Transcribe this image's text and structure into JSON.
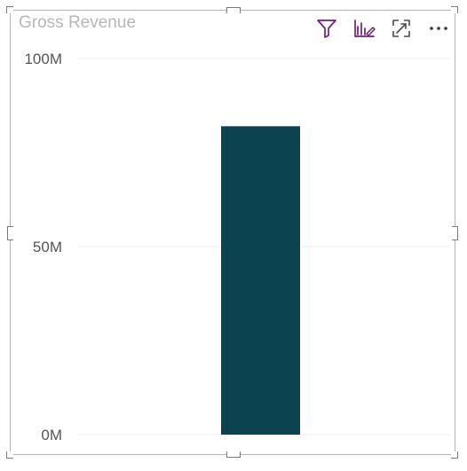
{
  "visual": {
    "title": "Gross Revenue",
    "toolbar": {
      "filter_icon": "filter-icon",
      "analytics_icon": "analytics-icon",
      "focus_icon": "focus-mode-icon",
      "more_icon": "more-options-icon"
    }
  },
  "chart_data": {
    "type": "bar",
    "title": "Gross Revenue",
    "categories": [
      ""
    ],
    "values": [
      82000000
    ],
    "xlabel": "",
    "ylabel": "",
    "ylim": [
      0,
      100000000
    ],
    "yticks": [
      0,
      50000000,
      100000000
    ],
    "ytick_labels": [
      "0M",
      "50M",
      "100M"
    ],
    "grid": true,
    "colors": {
      "bar": "#0b4350",
      "gridline": "#eeeeee",
      "tick_label": "#555555"
    }
  }
}
